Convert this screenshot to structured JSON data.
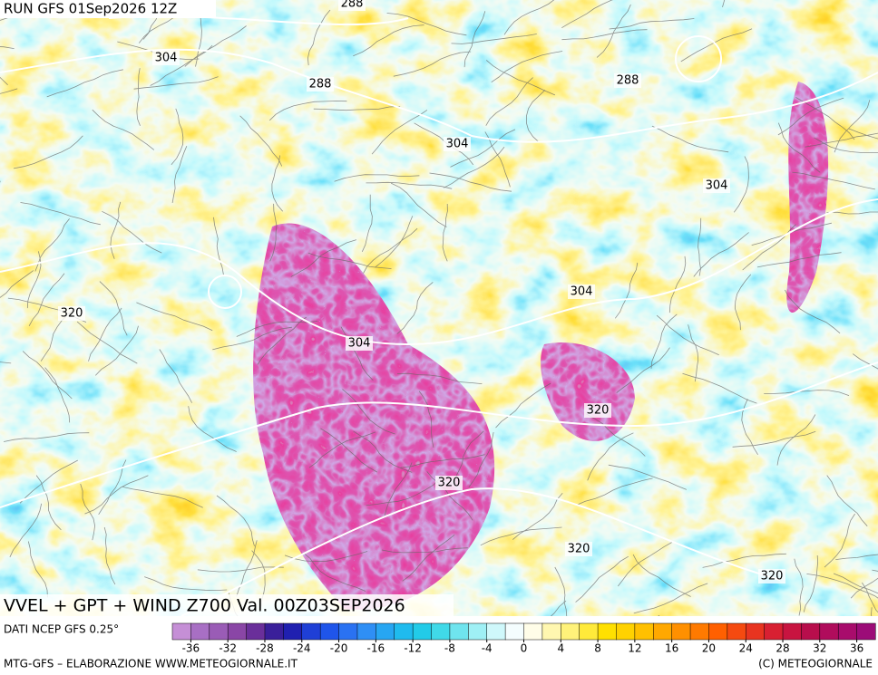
{
  "header": {
    "run": "RUN GFS 01Sep2026 12Z"
  },
  "map": {
    "title": "VVEL + GPT + WIND Z700 Val. 00Z03SEP2026",
    "contour_labels": [
      288,
      304,
      288,
      288,
      304,
      304,
      320,
      304,
      304,
      320,
      320,
      320,
      320
    ]
  },
  "colorbar": {
    "source": "DATI NCEP GFS 0.25°",
    "range": [
      -38,
      38
    ],
    "ticks": [
      -36,
      -32,
      -28,
      -24,
      -20,
      -16,
      -12,
      -8,
      -4,
      0,
      4,
      8,
      12,
      16,
      20,
      24,
      28,
      32,
      36
    ],
    "colors": [
      "#c58fd6",
      "#a86fc4",
      "#9a5cb6",
      "#8a46a6",
      "#6a2f9a",
      "#3a1f9a",
      "#2020b0",
      "#1f3fd6",
      "#1f55ea",
      "#2a72f2",
      "#2f8ff5",
      "#27a6f2",
      "#1fbbee",
      "#22cbe8",
      "#40d9e8",
      "#6fe4ee",
      "#9ff0f5",
      "#cff8fb",
      "#f4fdfe",
      "#fffde8",
      "#fff7b0",
      "#fff27a",
      "#ffea3a",
      "#ffe000",
      "#ffd200",
      "#ffc000",
      "#ffa800",
      "#ff9000",
      "#ff7a00",
      "#ff6000",
      "#f54a10",
      "#e83420",
      "#d82032",
      "#c81440",
      "#b80e4c",
      "#b00c5c",
      "#a80c6c",
      "#9c0c78"
    ]
  },
  "footer": {
    "left": "MTG-GFS – ELABORAZIONE WWW.METEOGIORNALE.IT",
    "right": "(C) METEOGIORNALE"
  }
}
